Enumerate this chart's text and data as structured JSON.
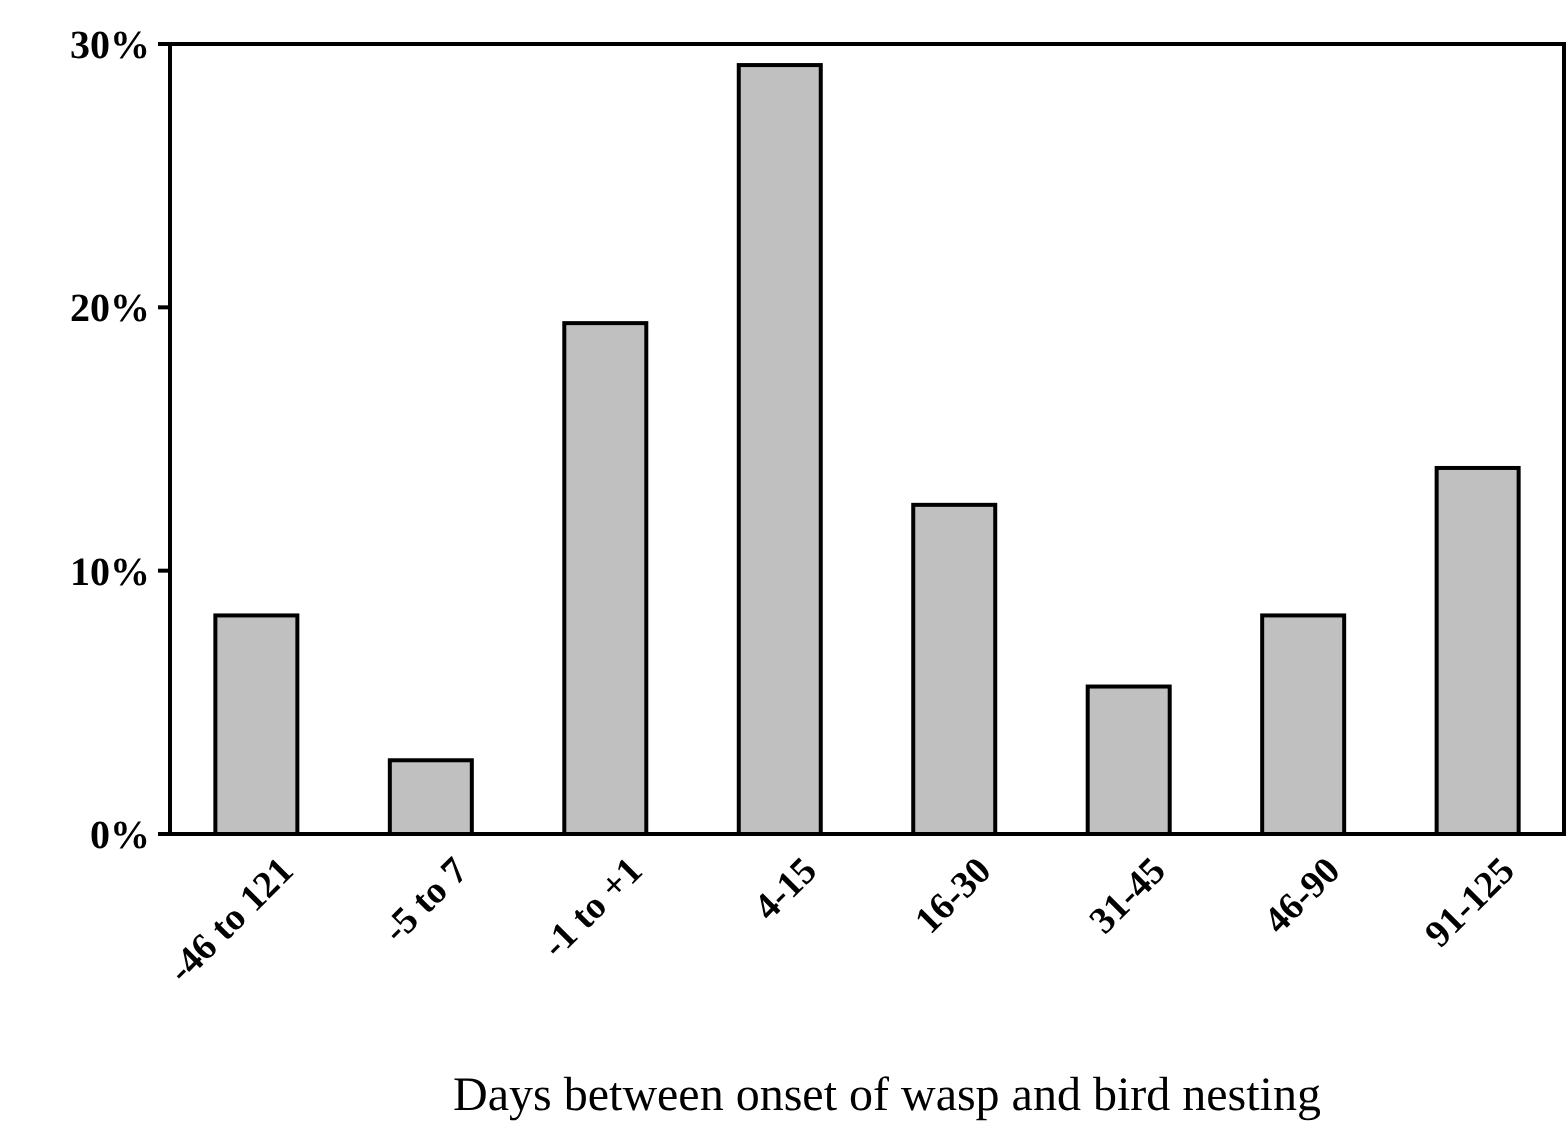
{
  "chart_data": {
    "type": "bar",
    "xlabel": "Days between onset of wasp and bird nesting",
    "categories": [
      "-46 to 121",
      "-5 to 7",
      "-1 to +1",
      "4-15",
      "16-30",
      "31-45",
      "46-90",
      "91-125"
    ],
    "values": [
      8.3,
      2.8,
      19.4,
      29.2,
      12.5,
      5.6,
      8.3,
      13.9
    ],
    "color": "#c0c0c0",
    "ylim": [
      0,
      30
    ],
    "yticks": [
      {
        "value": 0,
        "label": "0%"
      },
      {
        "value": 10,
        "label": "10%"
      },
      {
        "value": 20,
        "label": "20%"
      },
      {
        "value": 30,
        "label": "30%"
      }
    ],
    "grid": false
  }
}
